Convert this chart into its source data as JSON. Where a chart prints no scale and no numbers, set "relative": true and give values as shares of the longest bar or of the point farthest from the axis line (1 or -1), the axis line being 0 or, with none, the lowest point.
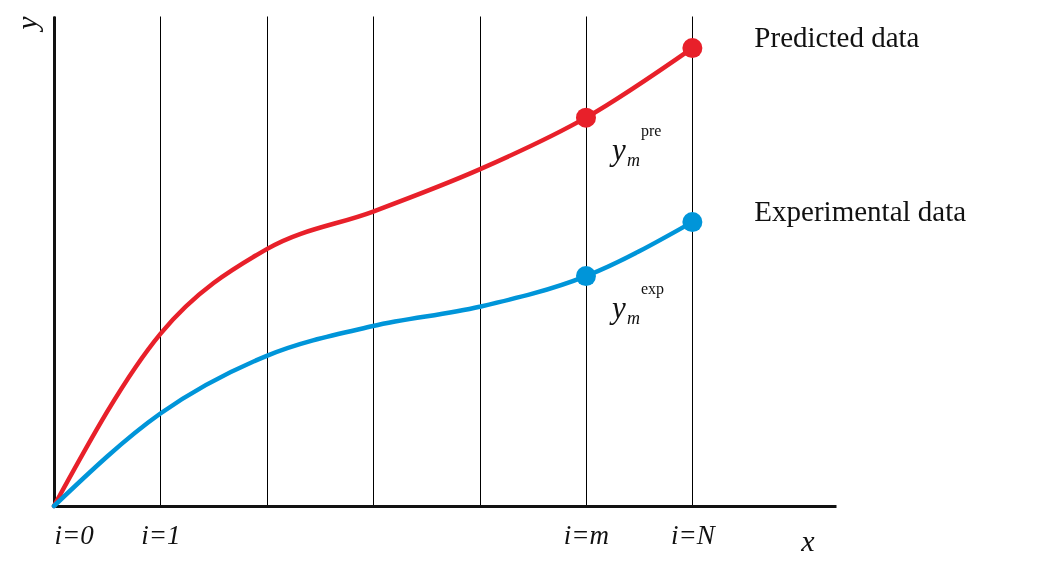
{
  "chart_data": {
    "type": "line",
    "relative": true,
    "xlabel": "x",
    "ylabel": "y",
    "categories": [
      "i=0",
      "i=1",
      null,
      null,
      null,
      "i=m",
      "i=N"
    ],
    "grid": "x",
    "series": [
      {
        "name": "Predicted data",
        "color": "#e8202a",
        "values": [
          0,
          0.376,
          0.561,
          0.643,
          0.735,
          0.848,
          1
        ]
      },
      {
        "name": "Experimental data",
        "color": "#0095d9",
        "values": [
          0,
          0.202,
          0.328,
          0.393,
          0.435,
          0.502,
          0.62
        ]
      },
      {
        "type": "scatter",
        "marker": "circle",
        "color": "#e8202a",
        "values": [
          null,
          null,
          null,
          null,
          null,
          0.848,
          1
        ]
      },
      {
        "type": "scatter",
        "marker": "circle",
        "color": "#0095d9",
        "values": [
          null,
          null,
          null,
          null,
          null,
          0.502,
          0.62
        ]
      }
    ],
    "annotations": [
      {
        "text": "y$_{m}$$^{pre}$",
        "x": "i=m",
        "y": 0.848
      },
      {
        "text": "y$_{m}$$^{exp}$",
        "x": "i=m",
        "y": 0.502
      }
    ]
  }
}
